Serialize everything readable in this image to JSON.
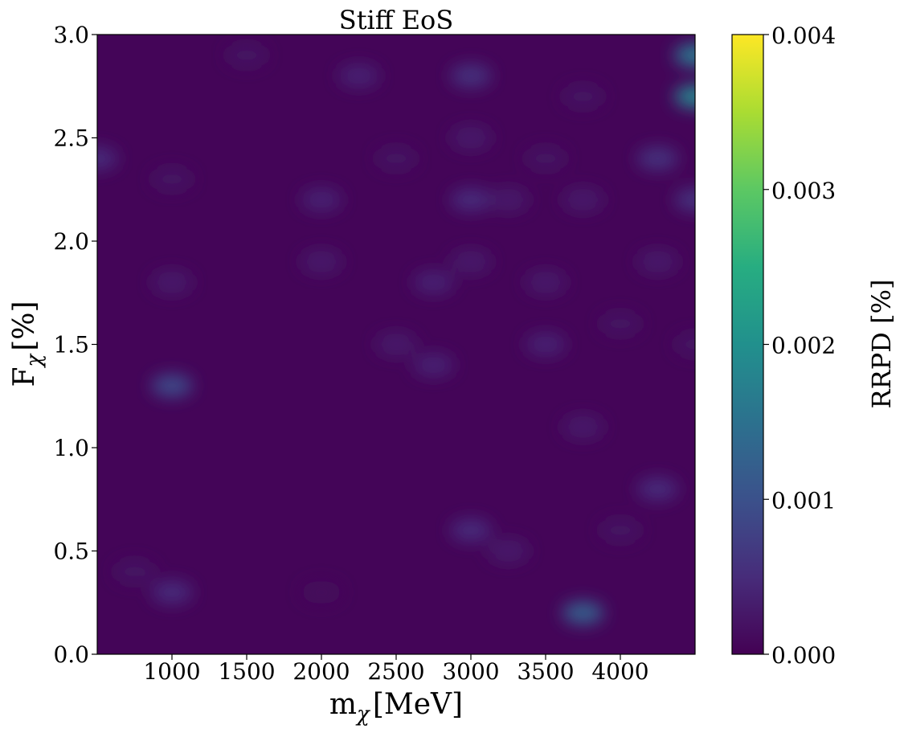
{
  "chart_data": {
    "type": "heatmap",
    "title": "Stiff EoS",
    "xlabel": {
      "base": "m",
      "sub": "χ",
      "unit": "[MeV]"
    },
    "ylabel": {
      "base": "F",
      "sub": "χ",
      "unit": "[%]"
    },
    "xlim": [
      500,
      4500
    ],
    "ylim": [
      0,
      3
    ],
    "xticks": [
      1000,
      1500,
      2000,
      2500,
      3000,
      3500,
      4000
    ],
    "xtick_labels": [
      "1000",
      "1500",
      "2000",
      "2500",
      "3000",
      "3500",
      "4000"
    ],
    "yticks": [
      0,
      0.5,
      1,
      1.5,
      2,
      2.5,
      3
    ],
    "ytick_labels": [
      "0.0",
      "0.5",
      "1.0",
      "1.5",
      "2.0",
      "2.5",
      "3.0"
    ],
    "colormap": "viridis",
    "colorbar": {
      "label": "RRPD [%]",
      "range": [
        0,
        0.004
      ],
      "ticks": [
        0,
        0.001,
        0.002,
        0.003,
        0.004
      ],
      "tick_labels": [
        "0.000",
        "0.001",
        "0.002",
        "0.003",
        "0.004"
      ]
    },
    "background_value": 5e-05,
    "hotspots": [
      {
        "x": 1000,
        "y": 1.3,
        "value": 0.0009
      },
      {
        "x": 1000,
        "y": 0.3,
        "value": 0.0005
      },
      {
        "x": 1000,
        "y": 1.8,
        "value": 0.0003
      },
      {
        "x": 1000,
        "y": 2.3,
        "value": 0.0002
      },
      {
        "x": 750,
        "y": 0.4,
        "value": 0.0002
      },
      {
        "x": 500,
        "y": 2.4,
        "value": 0.0005
      },
      {
        "x": 1500,
        "y": 2.9,
        "value": 0.0002
      },
      {
        "x": 2000,
        "y": 2.2,
        "value": 0.0004
      },
      {
        "x": 2000,
        "y": 1.9,
        "value": 0.0003
      },
      {
        "x": 2250,
        "y": 2.8,
        "value": 0.0004
      },
      {
        "x": 2000,
        "y": 0.3,
        "value": 0.0001
      },
      {
        "x": 2500,
        "y": 1.5,
        "value": 0.0003
      },
      {
        "x": 2500,
        "y": 2.4,
        "value": 0.0002
      },
      {
        "x": 2750,
        "y": 1.8,
        "value": 0.0004
      },
      {
        "x": 2750,
        "y": 1.4,
        "value": 0.0004
      },
      {
        "x": 3000,
        "y": 2.8,
        "value": 0.0006
      },
      {
        "x": 3000,
        "y": 2.2,
        "value": 0.0005
      },
      {
        "x": 3000,
        "y": 1.9,
        "value": 0.0003
      },
      {
        "x": 3000,
        "y": 2.5,
        "value": 0.0003
      },
      {
        "x": 3000,
        "y": 0.6,
        "value": 0.0005
      },
      {
        "x": 3250,
        "y": 0.5,
        "value": 0.0003
      },
      {
        "x": 3250,
        "y": 2.2,
        "value": 0.0003
      },
      {
        "x": 3500,
        "y": 1.5,
        "value": 0.0004
      },
      {
        "x": 3500,
        "y": 1.8,
        "value": 0.0003
      },
      {
        "x": 3500,
        "y": 2.4,
        "value": 0.0002
      },
      {
        "x": 3750,
        "y": 0.2,
        "value": 0.0012
      },
      {
        "x": 3750,
        "y": 1.1,
        "value": 0.0003
      },
      {
        "x": 3750,
        "y": 2.2,
        "value": 0.0003
      },
      {
        "x": 3750,
        "y": 2.7,
        "value": 0.0002
      },
      {
        "x": 4000,
        "y": 0.6,
        "value": 0.0002
      },
      {
        "x": 4000,
        "y": 1.6,
        "value": 0.0002
      },
      {
        "x": 4250,
        "y": 0.8,
        "value": 0.0005
      },
      {
        "x": 4250,
        "y": 2.4,
        "value": 0.0006
      },
      {
        "x": 4250,
        "y": 1.9,
        "value": 0.0003
      },
      {
        "x": 4500,
        "y": 2.9,
        "value": 0.0016
      },
      {
        "x": 4500,
        "y": 2.7,
        "value": 0.0018
      },
      {
        "x": 4500,
        "y": 2.2,
        "value": 0.0006
      },
      {
        "x": 4500,
        "y": 1.5,
        "value": 0.0002
      }
    ]
  }
}
